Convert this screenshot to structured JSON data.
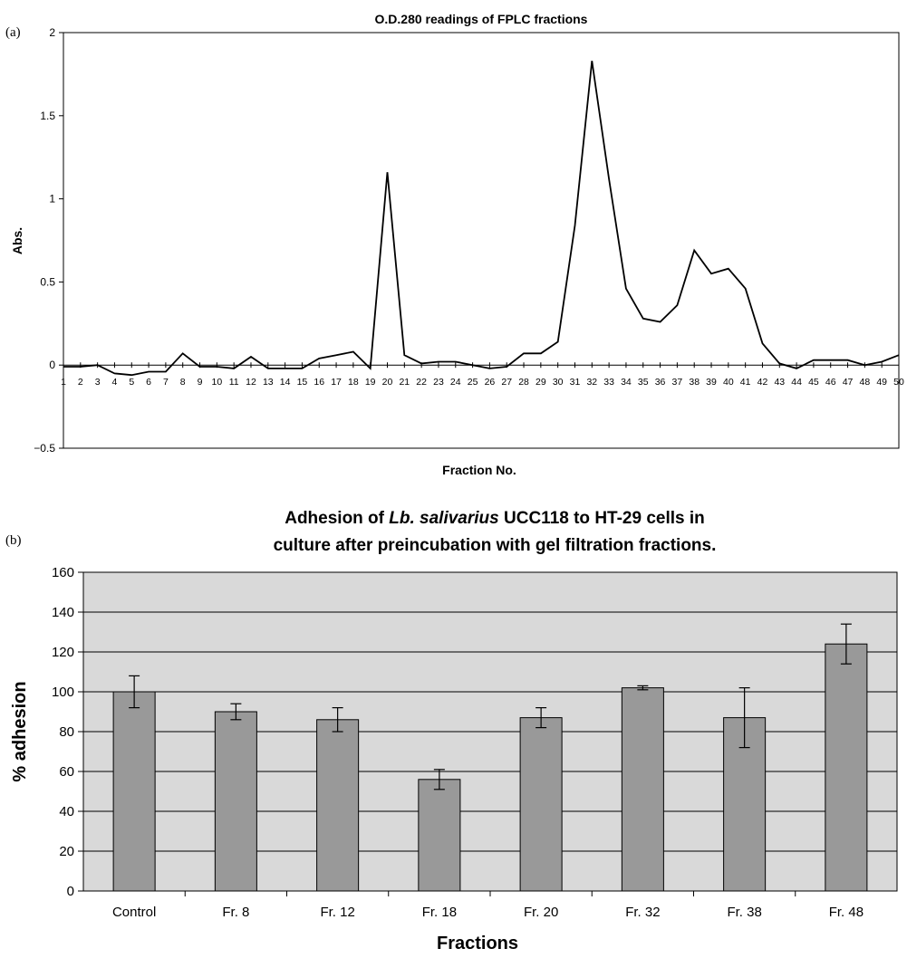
{
  "chart_data": [
    {
      "panel": "(a)",
      "type": "line",
      "title": "O.D.280 readings of FPLC  fractions",
      "xlabel": "Fraction No.",
      "ylabel": "Abs.",
      "ylim": [
        -0.5,
        2
      ],
      "yticks": [
        "2",
        "1.5",
        "1",
        "0.5",
        "0",
        "−0.5"
      ],
      "ytick_values": [
        2,
        1.5,
        1,
        0.5,
        0,
        -0.5
      ],
      "x": [
        1,
        2,
        3,
        4,
        5,
        6,
        7,
        8,
        9,
        10,
        11,
        12,
        13,
        14,
        15,
        16,
        17,
        18,
        19,
        20,
        21,
        22,
        23,
        24,
        25,
        26,
        27,
        28,
        29,
        30,
        31,
        32,
        33,
        34,
        35,
        36,
        37,
        38,
        39,
        40,
        41,
        42,
        43,
        44,
        45,
        46,
        47,
        48,
        49,
        50
      ],
      "series": [
        {
          "values": [
            -0.01,
            -0.01,
            0.0,
            -0.05,
            -0.06,
            -0.04,
            -0.04,
            0.07,
            -0.01,
            -0.01,
            -0.02,
            0.05,
            -0.02,
            -0.02,
            -0.02,
            0.04,
            0.06,
            0.08,
            -0.02,
            1.16,
            0.06,
            0.01,
            0.02,
            0.02,
            0.0,
            -0.02,
            -0.01,
            0.07,
            0.07,
            0.14,
            0.84,
            1.83,
            1.12,
            0.46,
            0.28,
            0.26,
            0.36,
            0.69,
            0.55,
            0.58,
            0.46,
            0.13,
            0.01,
            -0.02,
            0.03,
            0.03,
            0.03,
            0.0,
            0.02,
            0.06
          ]
        }
      ],
      "grid": false,
      "color": "#000000"
    },
    {
      "panel": "(b)",
      "type": "bar",
      "title_prefix": "Adhesion of ",
      "title_italic": "Lb. salivarius",
      "title_suffix": " UCC118 to HT-29 cells in",
      "title_line2": "culture after preincubation with gel filtration fractions.",
      "xlabel": "Fractions",
      "ylabel": "% adhesion",
      "ylim": [
        0,
        160
      ],
      "yticks": [
        "160",
        "140",
        "120",
        "100",
        "80",
        "60",
        "40",
        "20",
        "0"
      ],
      "ytick_values": [
        160,
        140,
        120,
        100,
        80,
        60,
        40,
        20,
        0
      ],
      "categories": [
        "Control",
        "Fr. 8",
        "Fr. 12",
        "Fr. 18",
        "Fr. 20",
        "Fr. 32",
        "Fr. 38",
        "Fr. 48"
      ],
      "values": [
        100,
        90,
        86,
        56,
        87,
        102,
        87,
        124
      ],
      "error_low": [
        92,
        86,
        80,
        51,
        82,
        101,
        72,
        114
      ],
      "error_high": [
        108,
        94,
        92,
        61,
        92,
        103,
        102,
        134
      ],
      "grid": true,
      "bar_color": "#999999",
      "plot_background": "#d9d9d9"
    }
  ],
  "labels": {
    "panel_a": "(a)",
    "panel_b": "(b)"
  }
}
